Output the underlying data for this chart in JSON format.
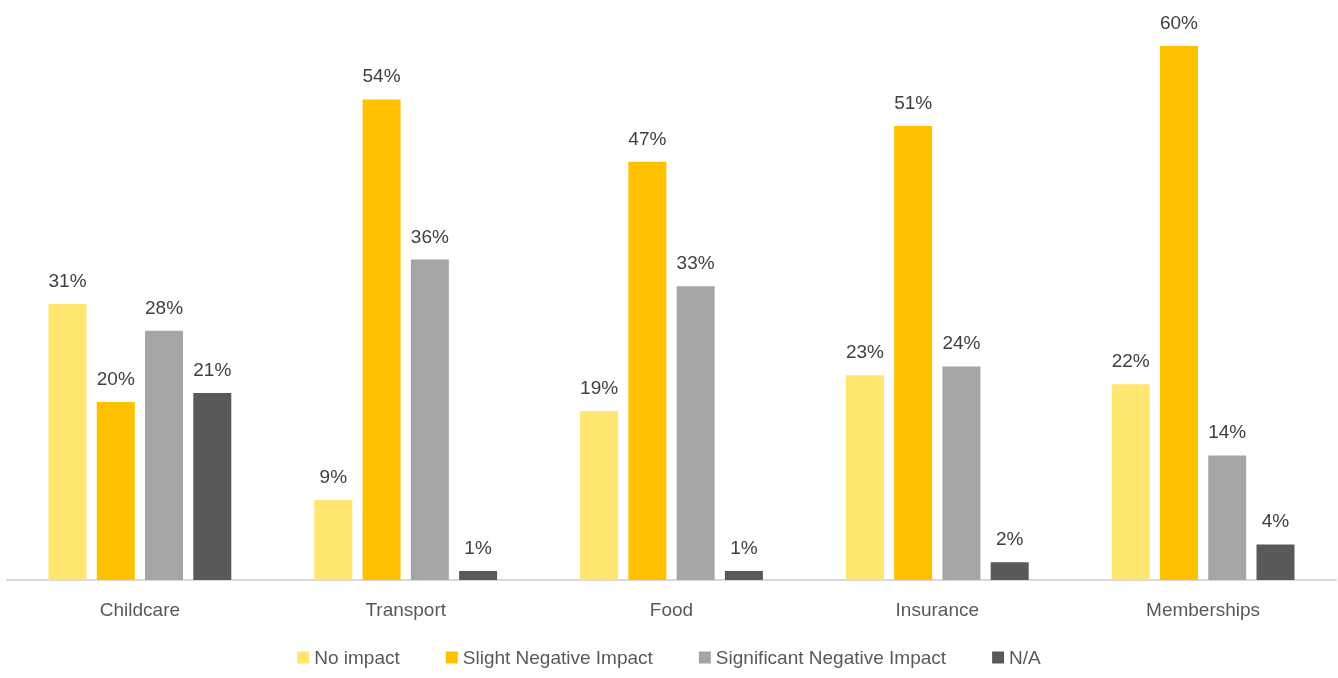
{
  "chart_data": {
    "type": "bar",
    "categories": [
      "Childcare",
      "Transport",
      "Food",
      "Insurance",
      "Memberships"
    ],
    "series": [
      {
        "name": "No impact",
        "color": "#ffe670",
        "values": [
          31,
          9,
          19,
          23,
          22
        ],
        "value_labels": [
          "31%",
          "9%",
          "19%",
          "23%",
          "22%"
        ]
      },
      {
        "name": "Slight Negative Impact",
        "color": "#ffc000",
        "values": [
          20,
          54,
          47,
          51,
          60
        ],
        "value_labels": [
          "20%",
          "54%",
          "47%",
          "51%",
          "60%"
        ]
      },
      {
        "name": "Significant Negative Impact",
        "color": "#a5a5a5",
        "values": [
          28,
          36,
          33,
          24,
          14
        ],
        "value_labels": [
          "28%",
          "36%",
          "33%",
          "24%",
          "14%"
        ]
      },
      {
        "name": "N/A",
        "color": "#595959",
        "values": [
          21,
          1,
          1,
          2,
          4
        ],
        "value_labels": [
          "21%",
          "1%",
          "1%",
          "2%",
          "4%"
        ]
      }
    ],
    "legend": "bottom",
    "tick_labels": "x"
  }
}
